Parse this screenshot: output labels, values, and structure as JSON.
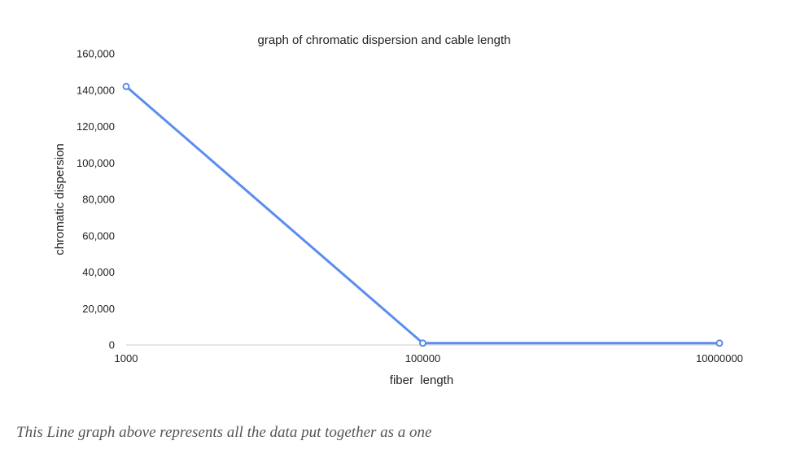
{
  "chart_data": {
    "type": "line",
    "title": "graph of chromatic dispersion and cable length",
    "xlabel": "fiber  length",
    "ylabel": "chromatic dispersion",
    "categories": [
      "1000",
      "100000",
      "10000000"
    ],
    "series": [
      {
        "values": [
          142000,
          1000,
          1000
        ],
        "color": "#5b8def"
      }
    ],
    "ylim": [
      0,
      160000
    ],
    "yticks": [
      0,
      20000,
      40000,
      60000,
      80000,
      100000,
      120000,
      140000,
      160000
    ],
    "ytick_labels": [
      "0",
      "20,000",
      "40,000",
      "60,000",
      "80,000",
      "100,000",
      "120,000",
      "140,000",
      "160,000"
    ],
    "grid": false,
    "legend": "none"
  },
  "caption": "This Line graph above represents all the data put together as a one"
}
